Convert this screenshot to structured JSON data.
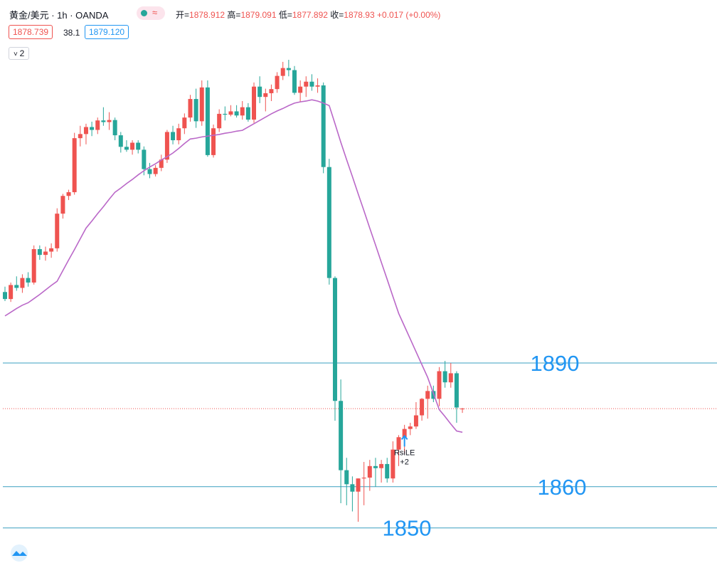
{
  "header": {
    "symbol": "黄金/美元 · 1h · OANDA",
    "labels": {
      "open": "开=",
      "high": "高=",
      "low": "低=",
      "close": "收="
    },
    "change": "+0.017 (+0.00%)",
    "bid": "1878.739",
    "spread": "38.1",
    "ask": "1879.120",
    "indicators": "2"
  },
  "chart_data": {
    "type": "candlestick",
    "up_color": "#ef5350",
    "down_color": "#26a69a",
    "ylim": [
      1841.5,
      1978
    ],
    "open": [
      1907.2,
      1905.5,
      1908.9,
      1908.2,
      1910.6,
      1909.5,
      1917.6,
      1916.2,
      1917,
      1917.8,
      1926.2,
      1930.5,
      1931.4,
      1944.5,
      1945.5,
      1947.2,
      1946.5,
      1948.8,
      1948.4,
      1948.9,
      1945.2,
      1942.4,
      1941.7,
      1943.4,
      1941.7,
      1937,
      1935.8,
      1937.3,
      1939.3,
      1946,
      1944,
      1946.9,
      1949.5,
      1954,
      1948.6,
      1956.8,
      1940.4,
      1946.9,
      1950.4,
      1950.2,
      1951,
      1950,
      1952,
      1949,
      1957,
      1954.5,
      1955.4,
      1956.4,
      1959.6,
      1961.5,
      1961,
      1955.5,
      1957,
      1958.2,
      1957,
      1957.3,
      1937.5,
      1910.6,
      1880.8,
      1864,
      1860.6,
      1858.8,
      1862,
      1862.2,
      1865,
      1864.5,
      1865.5,
      1862,
      1869,
      1872,
      1874,
      1874.6,
      1877.3,
      1881.3,
      1883.2,
      1881.3,
      1888,
      1885.3,
      1887.5,
      1878.912
    ],
    "high": [
      1908.5,
      1909.5,
      1911,
      1911.5,
      1912,
      1918.5,
      1918.5,
      1918.2,
      1919,
      1927.5,
      1931,
      1932,
      1945.8,
      1947.5,
      1948,
      1948.5,
      1949.5,
      1952,
      1950.8,
      1949.5,
      1946,
      1944,
      1944,
      1944,
      1942.5,
      1938.5,
      1938,
      1940.5,
      1946.5,
      1947.5,
      1948,
      1950.5,
      1955,
      1956.5,
      1958.5,
      1958.5,
      1947.8,
      1951.5,
      1952.2,
      1952.5,
      1952.5,
      1953.5,
      1953,
      1958,
      1959.5,
      1956.5,
      1957.5,
      1960.5,
      1963,
      1963.5,
      1962,
      1958.5,
      1959.5,
      1960,
      1959,
      1958,
      1939.5,
      1911,
      1886,
      1867,
      1862.5,
      1862,
      1866,
      1866.5,
      1867,
      1866.5,
      1867,
      1871,
      1872.5,
      1875,
      1875.5,
      1880.5,
      1881.5,
      1884.5,
      1884.5,
      1889,
      1890.5,
      1890,
      1888,
      1879.091
    ],
    "low": [
      1905,
      1904.8,
      1907.5,
      1907,
      1908.5,
      1909,
      1915,
      1914.8,
      1915.5,
      1917,
      1925,
      1929.5,
      1930.8,
      1942.5,
      1943,
      1945,
      1945.5,
      1947.5,
      1946.5,
      1944,
      1941,
      1941.2,
      1940.5,
      1940.8,
      1935.5,
      1934.8,
      1935.2,
      1936.5,
      1938.5,
      1943,
      1943,
      1945.5,
      1948.5,
      1947,
      1947.5,
      1940,
      1939.8,
      1946,
      1948.8,
      1949.8,
      1949.5,
      1949,
      1948.5,
      1948.2,
      1953,
      1951,
      1953.5,
      1955.5,
      1958.6,
      1959.5,
      1955,
      1953.2,
      1954.5,
      1956,
      1955.5,
      1936,
      1909,
      1876,
      1856,
      1855.5,
      1854,
      1851.5,
      1855.5,
      1859,
      1860,
      1861,
      1861,
      1861,
      1865,
      1868,
      1872.5,
      1874,
      1876,
      1876.5,
      1880.5,
      1879.5,
      1884,
      1884,
      1875.5,
      1877.892
    ],
    "close": [
      1905.5,
      1908.9,
      1908.2,
      1910.6,
      1909.5,
      1917.6,
      1916.2,
      1917,
      1917.8,
      1926.2,
      1930.5,
      1931.4,
      1944.5,
      1945.5,
      1947.2,
      1946.5,
      1948.8,
      1948.4,
      1948.9,
      1945.2,
      1942.4,
      1941.7,
      1943.4,
      1941.7,
      1937,
      1935.8,
      1937.3,
      1939.3,
      1946,
      1944,
      1946.9,
      1949.5,
      1954,
      1948.6,
      1956.8,
      1940.4,
      1946.9,
      1950.4,
      1950.2,
      1951,
      1950,
      1952,
      1949,
      1957,
      1954.5,
      1955.4,
      1956.4,
      1959.6,
      1961.5,
      1961,
      1955.5,
      1957,
      1958.2,
      1957,
      1957.3,
      1937.5,
      1910.6,
      1880.8,
      1864,
      1860.6,
      1858.8,
      1862,
      1862.2,
      1865,
      1864.5,
      1865.5,
      1862,
      1869,
      1872,
      1874,
      1874.6,
      1877.3,
      1881.3,
      1883.2,
      1881.3,
      1888,
      1885.3,
      1887.5,
      1879.2,
      1878.93
    ],
    "ma": {
      "color": "#ba68c8",
      "values": [
        1901.4,
        1902.3,
        1903.2,
        1904,
        1904.6,
        1905.6,
        1906.6,
        1907.7,
        1908.8,
        1909.8,
        1912.4,
        1915,
        1917.5,
        1920.1,
        1922.7,
        1924.4,
        1926.2,
        1927.9,
        1929.7,
        1931.4,
        1932.4,
        1933.5,
        1934.5,
        1935.6,
        1936.6,
        1937.5,
        1938.3,
        1939.2,
        1940,
        1940.9,
        1942,
        1943.2,
        1944.3,
        1944.5,
        1944.8,
        1945,
        1945.2,
        1945.4,
        1945.7,
        1945.9,
        1946.2,
        1946.4,
        1947.2,
        1948,
        1948.8,
        1949.6,
        1950.4,
        1951.1,
        1951.7,
        1952.4,
        1953,
        1953.3,
        1953.5,
        1953.8,
        1953.5,
        1953,
        1952.4,
        1948,
        1943.5,
        1939.3,
        1935.2,
        1931,
        1926.9,
        1922.7,
        1918.6,
        1914.4,
        1910.3,
        1906.1,
        1902,
        1898.9,
        1895.8,
        1892.7,
        1889.6,
        1886.5,
        1882.6,
        1878.7,
        1877,
        1875.2,
        1873.5,
        1873.2
      ]
    },
    "levels": {
      "values": [
        1890,
        1860,
        1850
      ],
      "color": "#3a9fc0",
      "label_color": "#2196f3"
    },
    "signal": {
      "text": "RsiLE",
      "sub": "+2",
      "at": 69,
      "color": "#2196f3"
    }
  }
}
